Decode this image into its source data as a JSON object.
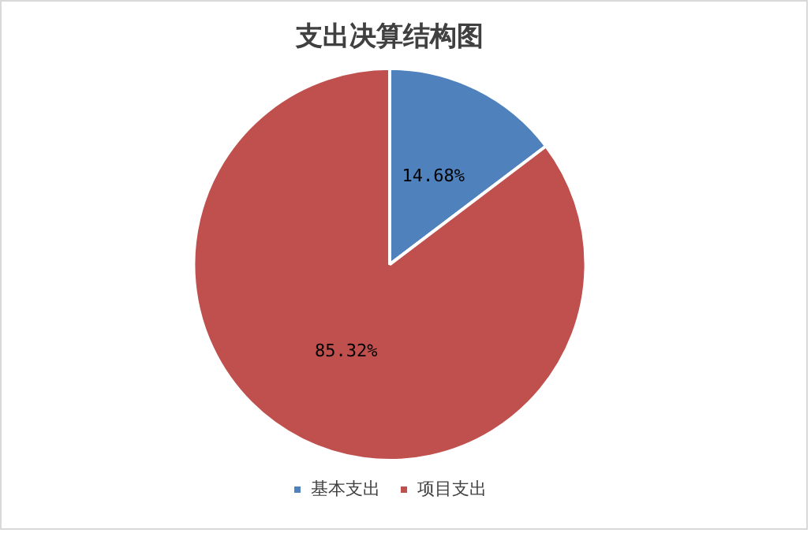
{
  "chart_data": {
    "type": "pie",
    "title": "支出决算结构图",
    "categories": [
      "基本支出",
      "项目支出"
    ],
    "values": [
      14.68,
      85.32
    ],
    "colors": [
      "#4f81bd",
      "#c0504d"
    ],
    "value_labels": [
      "14.68%",
      "85.32%"
    ],
    "legend": "bottom"
  }
}
